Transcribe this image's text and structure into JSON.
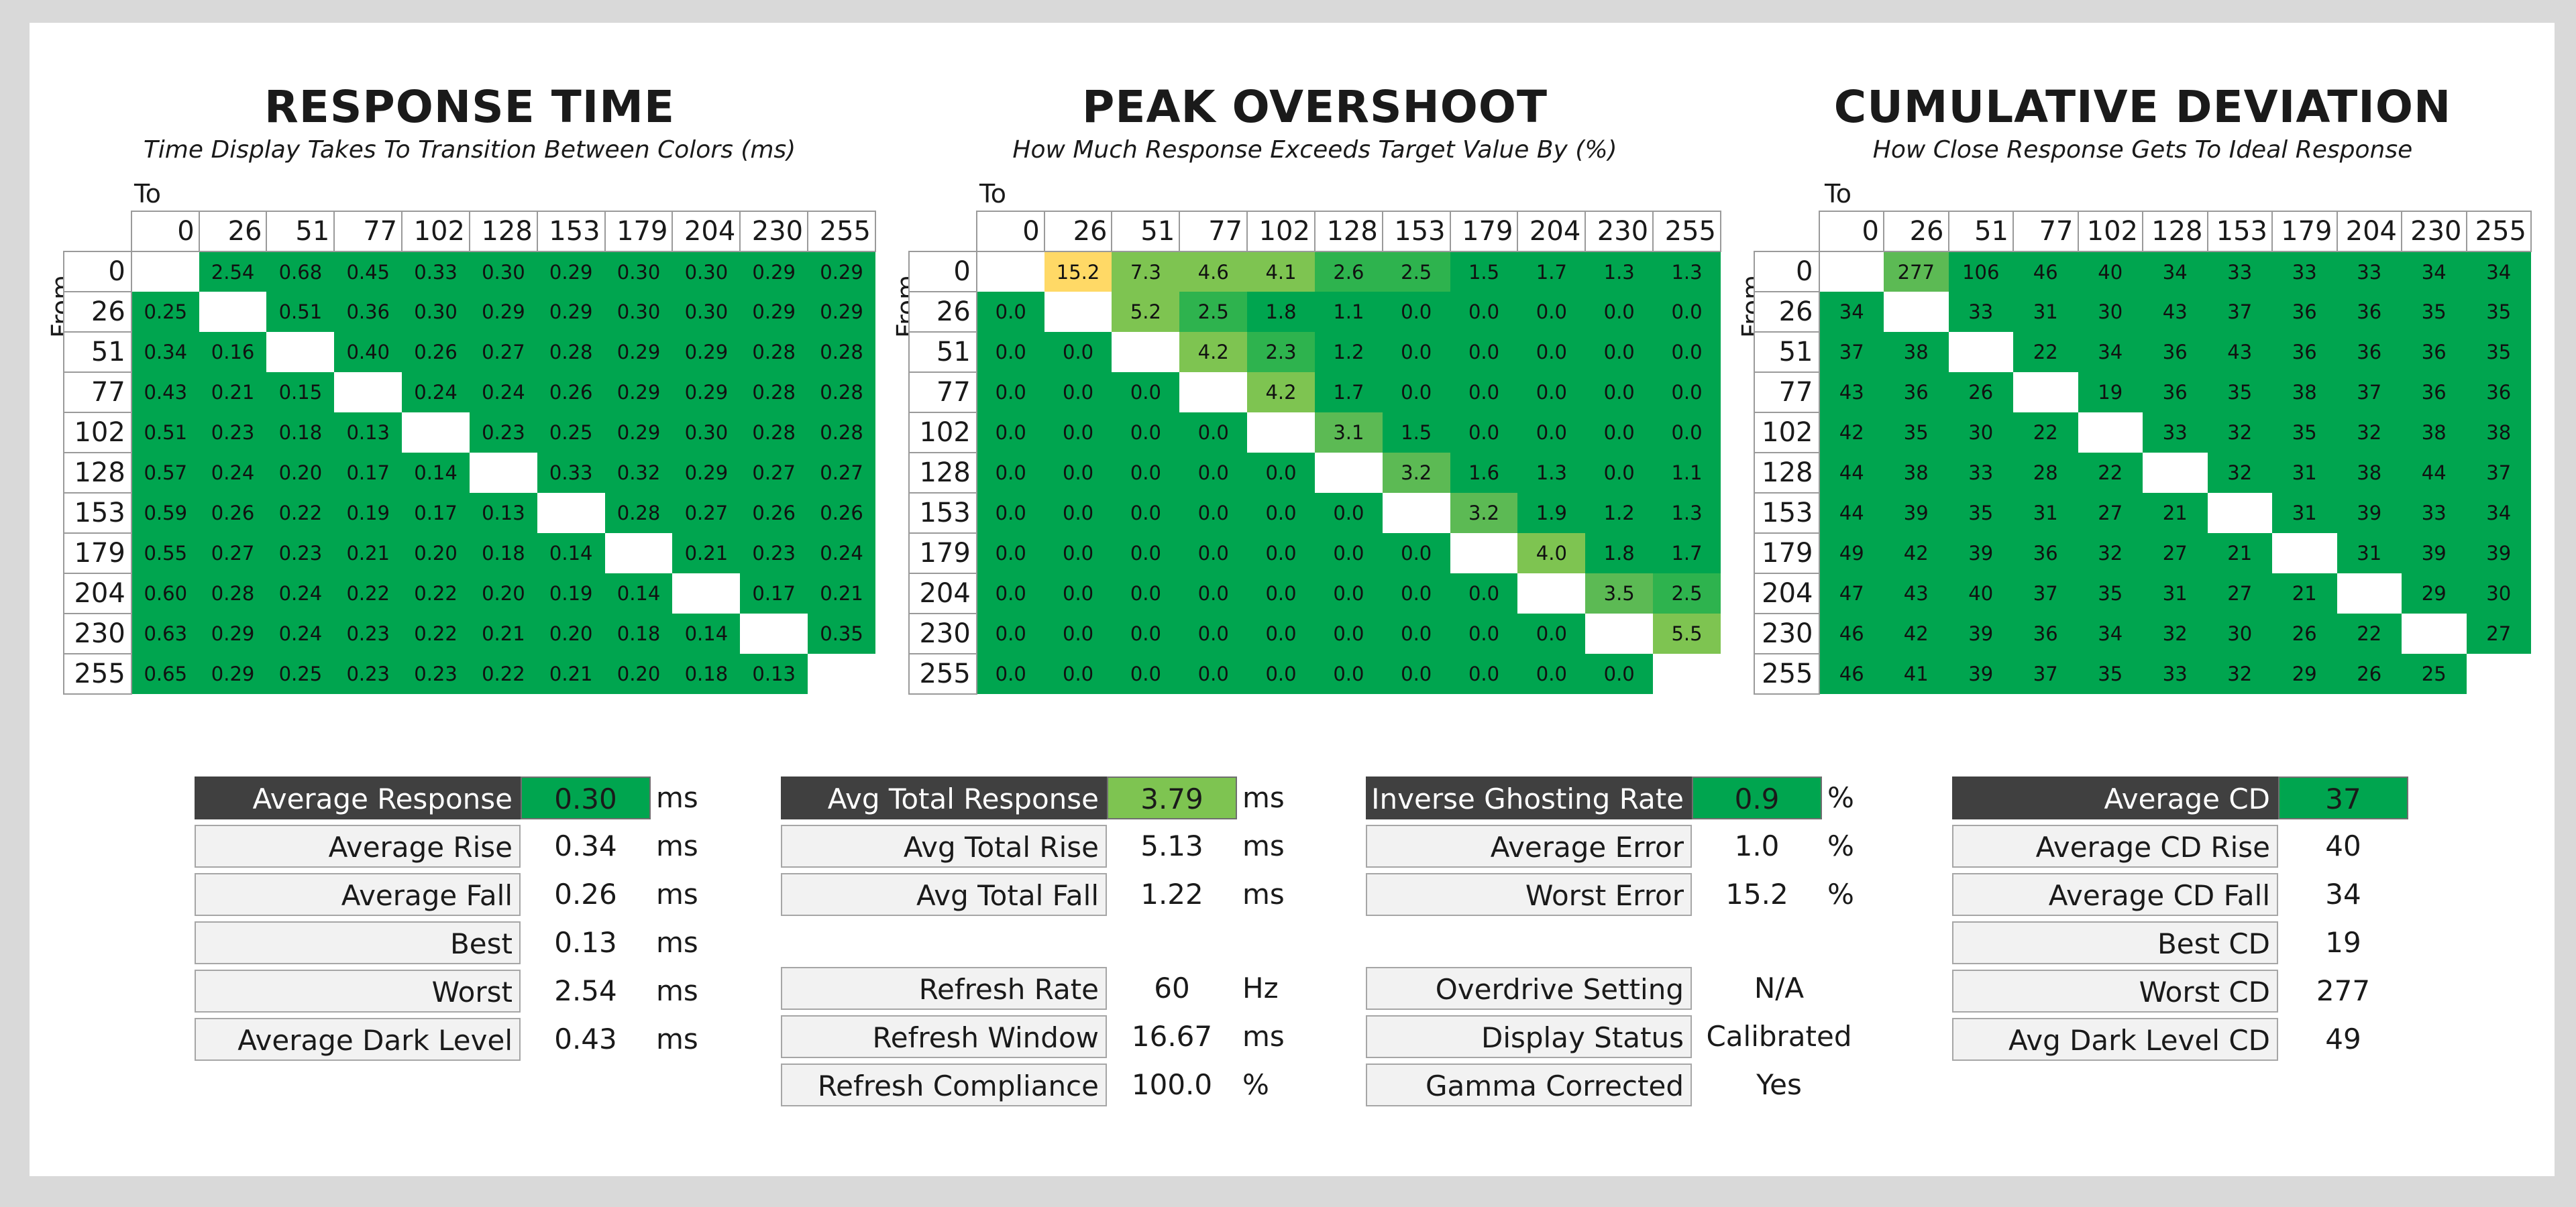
{
  "chart_data": [
    {
      "type": "heatmap",
      "title": "RESPONSE TIME",
      "subtitle": "Time Display Takes To Transition Between Colors (ms)",
      "xlabel": "To",
      "ylabel": "From",
      "x": [
        "0",
        "26",
        "51",
        "77",
        "102",
        "128",
        "153",
        "179",
        "204",
        "230",
        "255"
      ],
      "y": [
        "0",
        "26",
        "51",
        "77",
        "102",
        "128",
        "153",
        "179",
        "204",
        "230",
        "255"
      ],
      "values": [
        [
          null,
          "2.54",
          "0.68",
          "0.45",
          "0.33",
          "0.30",
          "0.29",
          "0.30",
          "0.30",
          "0.29",
          "0.29"
        ],
        [
          "0.25",
          null,
          "0.51",
          "0.36",
          "0.30",
          "0.29",
          "0.29",
          "0.30",
          "0.30",
          "0.29",
          "0.29"
        ],
        [
          "0.34",
          "0.16",
          null,
          "0.40",
          "0.26",
          "0.27",
          "0.28",
          "0.29",
          "0.29",
          "0.28",
          "0.28"
        ],
        [
          "0.43",
          "0.21",
          "0.15",
          null,
          "0.24",
          "0.24",
          "0.26",
          "0.29",
          "0.29",
          "0.28",
          "0.28"
        ],
        [
          "0.51",
          "0.23",
          "0.18",
          "0.13",
          null,
          "0.23",
          "0.25",
          "0.29",
          "0.30",
          "0.28",
          "0.28"
        ],
        [
          "0.57",
          "0.24",
          "0.20",
          "0.17",
          "0.14",
          null,
          "0.33",
          "0.32",
          "0.29",
          "0.27",
          "0.27"
        ],
        [
          "0.59",
          "0.26",
          "0.22",
          "0.19",
          "0.17",
          "0.13",
          null,
          "0.28",
          "0.27",
          "0.26",
          "0.26"
        ],
        [
          "0.55",
          "0.27",
          "0.23",
          "0.21",
          "0.20",
          "0.18",
          "0.14",
          null,
          "0.21",
          "0.23",
          "0.24"
        ],
        [
          "0.60",
          "0.28",
          "0.24",
          "0.22",
          "0.22",
          "0.20",
          "0.19",
          "0.14",
          null,
          "0.17",
          "0.21"
        ],
        [
          "0.63",
          "0.29",
          "0.24",
          "0.23",
          "0.22",
          "0.21",
          "0.20",
          "0.18",
          "0.14",
          null,
          "0.35"
        ],
        [
          "0.65",
          "0.29",
          "0.25",
          "0.23",
          "0.23",
          "0.22",
          "0.21",
          "0.20",
          "0.18",
          "0.13",
          null
        ]
      ]
    },
    {
      "type": "heatmap",
      "title": "PEAK OVERSHOOT",
      "subtitle": "How Much Response Exceeds Target Value By (%)",
      "xlabel": "To",
      "ylabel": "From",
      "x": [
        "0",
        "26",
        "51",
        "77",
        "102",
        "128",
        "153",
        "179",
        "204",
        "230",
        "255"
      ],
      "y": [
        "0",
        "26",
        "51",
        "77",
        "102",
        "128",
        "153",
        "179",
        "204",
        "230",
        "255"
      ],
      "values": [
        [
          null,
          "15.2",
          "7.3",
          "4.6",
          "4.1",
          "2.6",
          "2.5",
          "1.5",
          "1.7",
          "1.3",
          "1.3"
        ],
        [
          "0.0",
          null,
          "5.2",
          "2.5",
          "1.8",
          "1.1",
          "0.0",
          "0.0",
          "0.0",
          "0.0",
          "0.0"
        ],
        [
          "0.0",
          "0.0",
          null,
          "4.2",
          "2.3",
          "1.2",
          "0.0",
          "0.0",
          "0.0",
          "0.0",
          "0.0"
        ],
        [
          "0.0",
          "0.0",
          "0.0",
          null,
          "4.2",
          "1.7",
          "0.0",
          "0.0",
          "0.0",
          "0.0",
          "0.0"
        ],
        [
          "0.0",
          "0.0",
          "0.0",
          "0.0",
          null,
          "3.1",
          "1.5",
          "0.0",
          "0.0",
          "0.0",
          "0.0"
        ],
        [
          "0.0",
          "0.0",
          "0.0",
          "0.0",
          "0.0",
          null,
          "3.2",
          "1.6",
          "1.3",
          "0.0",
          "1.1"
        ],
        [
          "0.0",
          "0.0",
          "0.0",
          "0.0",
          "0.0",
          "0.0",
          null,
          "3.2",
          "1.9",
          "1.2",
          "1.3"
        ],
        [
          "0.0",
          "0.0",
          "0.0",
          "0.0",
          "0.0",
          "0.0",
          "0.0",
          null,
          "4.0",
          "1.8",
          "1.7"
        ],
        [
          "0.0",
          "0.0",
          "0.0",
          "0.0",
          "0.0",
          "0.0",
          "0.0",
          "0.0",
          null,
          "3.5",
          "2.5"
        ],
        [
          "0.0",
          "0.0",
          "0.0",
          "0.0",
          "0.0",
          "0.0",
          "0.0",
          "0.0",
          "0.0",
          null,
          "5.5"
        ],
        [
          "0.0",
          "0.0",
          "0.0",
          "0.0",
          "0.0",
          "0.0",
          "0.0",
          "0.0",
          "0.0",
          "0.0",
          null
        ]
      ]
    },
    {
      "type": "heatmap",
      "title": "CUMULATIVE DEVIATION",
      "subtitle": "How Close Response Gets To Ideal Response",
      "xlabel": "To",
      "ylabel": "From",
      "x": [
        "0",
        "26",
        "51",
        "77",
        "102",
        "128",
        "153",
        "179",
        "204",
        "230",
        "255"
      ],
      "y": [
        "0",
        "26",
        "51",
        "77",
        "102",
        "128",
        "153",
        "179",
        "204",
        "230",
        "255"
      ],
      "values": [
        [
          null,
          "277",
          "106",
          "46",
          "40",
          "34",
          "33",
          "33",
          "33",
          "34",
          "34"
        ],
        [
          "34",
          null,
          "33",
          "31",
          "30",
          "43",
          "37",
          "36",
          "36",
          "35",
          "35"
        ],
        [
          "37",
          "38",
          null,
          "22",
          "34",
          "36",
          "43",
          "36",
          "36",
          "36",
          "35"
        ],
        [
          "43",
          "36",
          "26",
          null,
          "19",
          "36",
          "35",
          "38",
          "37",
          "36",
          "36"
        ],
        [
          "42",
          "35",
          "30",
          "22",
          null,
          "33",
          "32",
          "35",
          "32",
          "38",
          "38"
        ],
        [
          "44",
          "38",
          "33",
          "28",
          "22",
          null,
          "32",
          "31",
          "38",
          "44",
          "37"
        ],
        [
          "44",
          "39",
          "35",
          "31",
          "27",
          "21",
          null,
          "31",
          "39",
          "33",
          "34"
        ],
        [
          "49",
          "42",
          "39",
          "36",
          "32",
          "27",
          "21",
          null,
          "31",
          "39",
          "39"
        ],
        [
          "47",
          "43",
          "40",
          "37",
          "35",
          "31",
          "27",
          "21",
          null,
          "29",
          "30"
        ],
        [
          "46",
          "42",
          "39",
          "36",
          "34",
          "32",
          "30",
          "26",
          "22",
          null,
          "27"
        ],
        [
          "46",
          "41",
          "39",
          "37",
          "35",
          "33",
          "32",
          "29",
          "26",
          "25",
          null
        ]
      ]
    }
  ],
  "stats": {
    "response": [
      {
        "label": "Average Response",
        "value": "0.30",
        "unit": "ms"
      },
      {
        "label": "Average Rise",
        "value": "0.34",
        "unit": "ms"
      },
      {
        "label": "Average Fall",
        "value": "0.26",
        "unit": "ms"
      },
      {
        "label": "Best",
        "value": "0.13",
        "unit": "ms"
      },
      {
        "label": "Worst",
        "value": "2.54",
        "unit": "ms"
      },
      {
        "label": "Average Dark Level",
        "value": "0.43",
        "unit": "ms"
      }
    ],
    "total": [
      {
        "label": "Avg Total Response",
        "value": "3.79",
        "unit": "ms"
      },
      {
        "label": "Avg Total Rise",
        "value": "5.13",
        "unit": "ms"
      },
      {
        "label": "Avg Total Fall",
        "value": "1.22",
        "unit": "ms"
      }
    ],
    "refresh": [
      {
        "label": "Refresh Rate",
        "value": "60",
        "unit": "Hz"
      },
      {
        "label": "Refresh Window",
        "value": "16.67",
        "unit": "ms"
      },
      {
        "label": "Refresh Compliance",
        "value": "100.0",
        "unit": "%"
      }
    ],
    "overshoot": [
      {
        "label": "Inverse Ghosting Rate",
        "value": "0.9",
        "unit": "%"
      },
      {
        "label": "Average Error",
        "value": "1.0",
        "unit": "%"
      },
      {
        "label": "Worst Error",
        "value": "15.2",
        "unit": "%"
      }
    ],
    "settings": [
      {
        "label": "Overdrive Setting",
        "value": "N/A"
      },
      {
        "label": "Display Status",
        "value": "Calibrated"
      },
      {
        "label": "Gamma Corrected",
        "value": "Yes"
      }
    ],
    "cd": [
      {
        "label": "Average CD",
        "value": "37"
      },
      {
        "label": "Average CD Rise",
        "value": "40"
      },
      {
        "label": "Average CD Fall",
        "value": "34"
      },
      {
        "label": "Best CD",
        "value": "19"
      },
      {
        "label": "Worst CD",
        "value": "277"
      },
      {
        "label": "Avg Dark Level CD",
        "value": "49"
      }
    ]
  },
  "colors": {
    "good": "#00a54f",
    "mid": "#7ec451",
    "warn": "#ffd966",
    "header_dark": "#404040"
  }
}
